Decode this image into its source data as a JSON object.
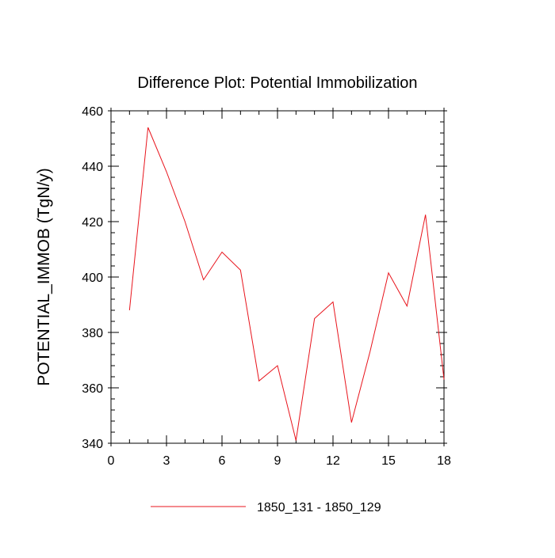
{
  "chart_data": {
    "type": "line",
    "title": "Difference Plot: Potential Immobilization",
    "xlabel": "",
    "ylabel": "POTENTIAL_IMMOB  (TgN/y)",
    "xlim": [
      0,
      18
    ],
    "ylim": [
      340,
      460
    ],
    "xticks": [
      0,
      3,
      6,
      9,
      12,
      15,
      18
    ],
    "yticks": [
      340,
      360,
      380,
      400,
      420,
      440,
      460
    ],
    "x_minor_step": 1,
    "y_minor_step": 4,
    "grid": false,
    "legend_position": "bottom-center",
    "series": [
      {
        "name": "1850_131 - 1850_129",
        "color": "#e8141c",
        "x": [
          1,
          2,
          3,
          4,
          5,
          6,
          7,
          8,
          9,
          10,
          11,
          12,
          13,
          14,
          15,
          16,
          17,
          18
        ],
        "y": [
          388,
          454,
          438,
          420,
          399,
          409,
          402.5,
          362.5,
          368,
          341,
          385,
          391,
          347.5,
          373,
          401.5,
          389.5,
          422.5,
          363
        ]
      }
    ]
  }
}
